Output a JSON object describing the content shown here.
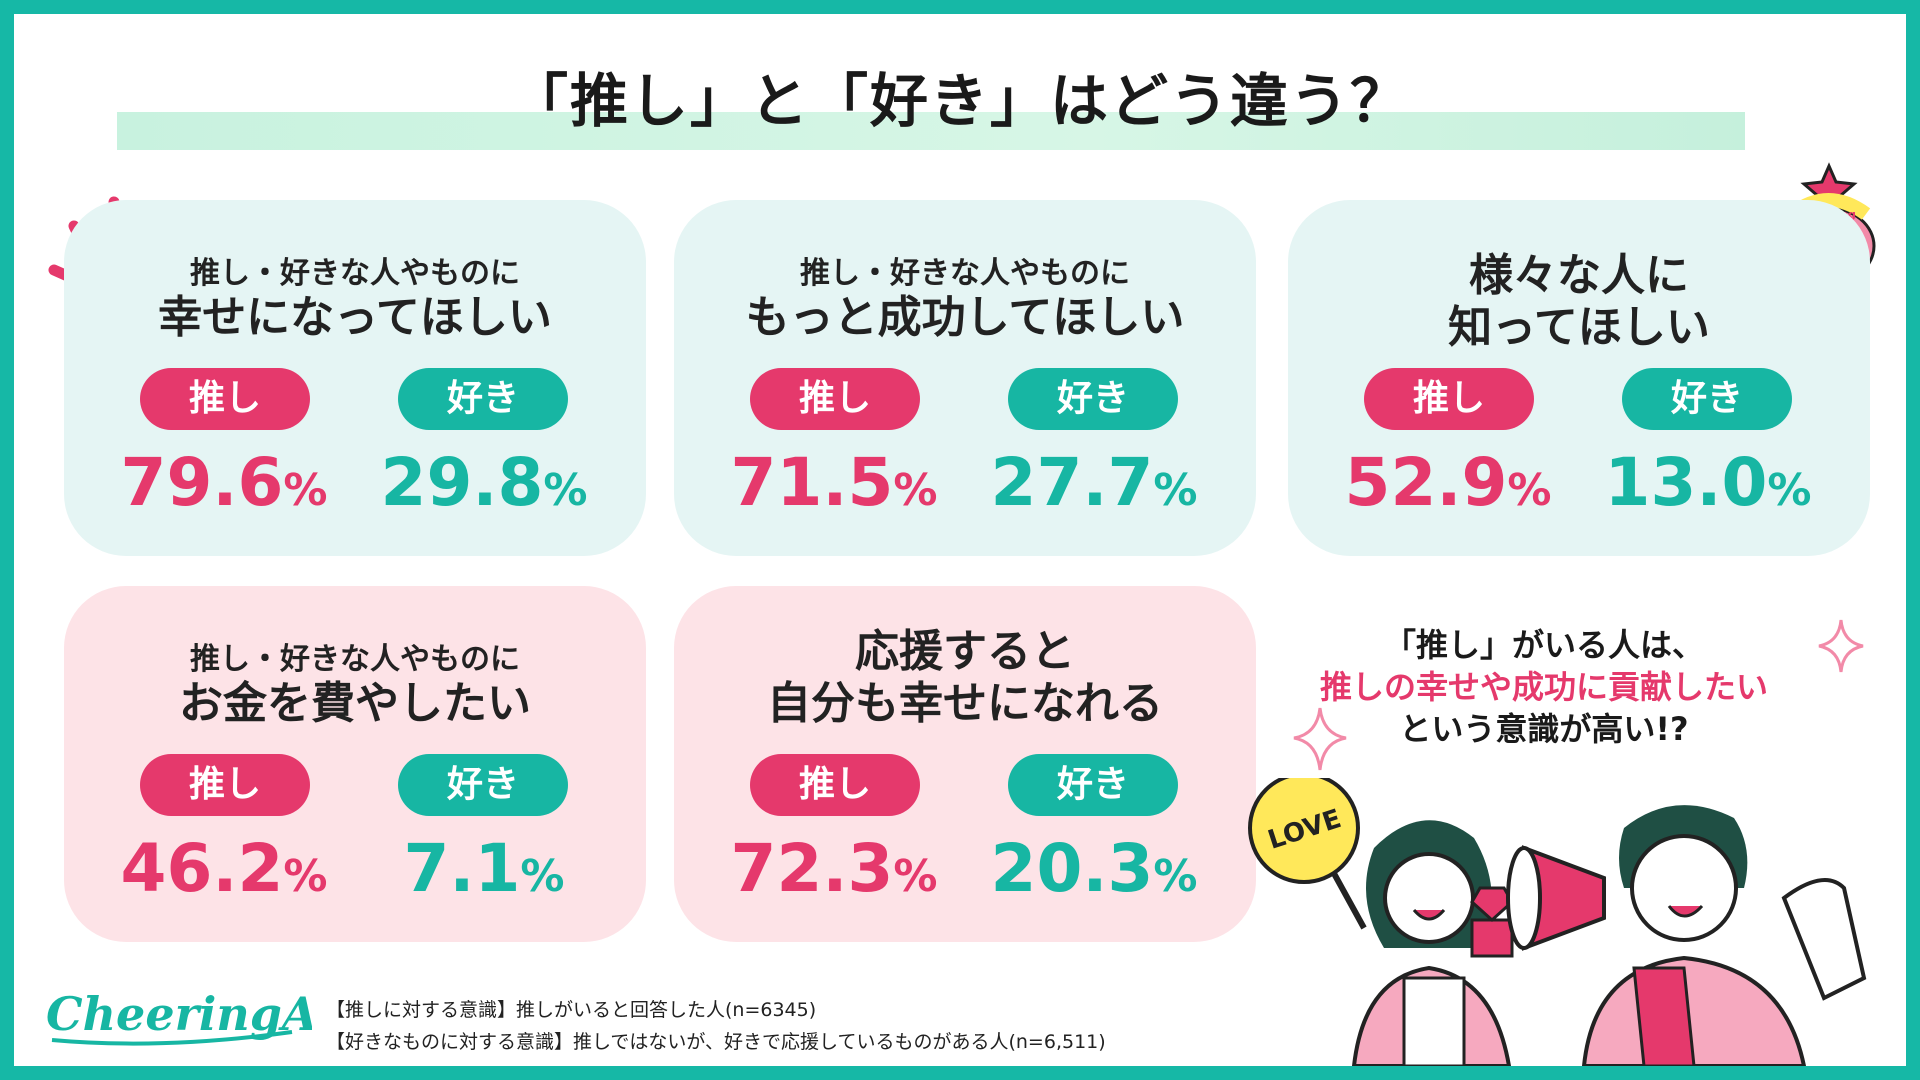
{
  "title": "「推し」と「好き」はどう違う？",
  "labels": {
    "oshi": "推し",
    "suki": "好き",
    "pct": "%"
  },
  "chart_data": {
    "type": "bar",
    "categories": [
      "推し・好きな人やものに幸せになってほしい",
      "推し・好きな人やものにもっと成功してほしい",
      "様々な人に知ってほしい",
      "推し・好きな人やものにお金を費やしたい",
      "応援すると自分も幸せになれる"
    ],
    "series": [
      {
        "name": "推し",
        "values": [
          79.6,
          71.5,
          52.9,
          46.2,
          72.3
        ]
      },
      {
        "name": "好き",
        "values": [
          29.8,
          27.7,
          13.0,
          7.1,
          20.3
        ]
      }
    ],
    "unit": "%",
    "colors": {
      "推し": "#e5396c",
      "好き": "#17b6a3"
    }
  },
  "cards": [
    {
      "sub": "推し・好きな人やものに",
      "main": "幸せになってほしい",
      "oshi": "79.6",
      "suki": "29.8",
      "tone": "green"
    },
    {
      "sub": "推し・好きな人やものに",
      "main": "もっと成功してほしい",
      "oshi": "71.5",
      "suki": "27.7",
      "tone": "green"
    },
    {
      "sub": "",
      "main": "様々な人に",
      "main2": "知ってほしい",
      "oshi": "52.9",
      "suki": "13.0",
      "tone": "green"
    },
    {
      "sub": "推し・好きな人やものに",
      "main": "お金を費やしたい",
      "oshi": "46.2",
      "suki": "7.1",
      "tone": "pink"
    },
    {
      "sub": "",
      "main": "応援すると",
      "main2": "自分も幸せになれる",
      "oshi": "72.3",
      "suki": "20.3",
      "tone": "pink"
    }
  ],
  "callout": {
    "line1": "「推し」がいる人は、",
    "line2": "推しの幸せや成功に貢献したい",
    "line3": "という意識が高い!?"
  },
  "notes": {
    "line1": "【推しに対する意識】推しがいると回答した人(n=6345)",
    "line2": "【好きなものに対する意識】推しではないが、好きで応援しているものがある人(n=6,511)"
  },
  "logo": {
    "text": "CheeringAD",
    "badge_top": "Cheering",
    "badge_main": "AD"
  },
  "illustration": {
    "sign_text": "LOVE"
  },
  "colors": {
    "frame": "#16b8a6",
    "oshi": "#e5396c",
    "suki": "#17b6a3",
    "card_green": "#e5f5f4",
    "card_pink": "#fde3e7"
  }
}
